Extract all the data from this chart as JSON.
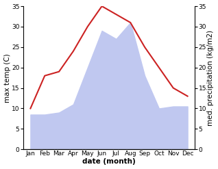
{
  "months": [
    "Jan",
    "Feb",
    "Mar",
    "Apr",
    "May",
    "Jun",
    "Jul",
    "Aug",
    "Sep",
    "Oct",
    "Nov",
    "Dec"
  ],
  "temperature": [
    10,
    18,
    19,
    24,
    30,
    35,
    33,
    31,
    25,
    20,
    15,
    13
  ],
  "precipitation": [
    8.5,
    8.5,
    9,
    11,
    20,
    29,
    27,
    31,
    18,
    10,
    10.5,
    10.5
  ],
  "temp_color": "#cc2222",
  "precip_color": "#c0c8f0",
  "ylim": [
    0,
    35
  ],
  "ylabel_left": "max temp (C)",
  "ylabel_right": "med. precipitation (kg/m2)",
  "xlabel": "date (month)",
  "yticks": [
    0,
    5,
    10,
    15,
    20,
    25,
    30,
    35
  ],
  "background_color": "#ffffff",
  "temp_linewidth": 1.5,
  "xlabel_fontsize": 7.5,
  "ylabel_fontsize": 7.5,
  "tick_fontsize": 6.5
}
